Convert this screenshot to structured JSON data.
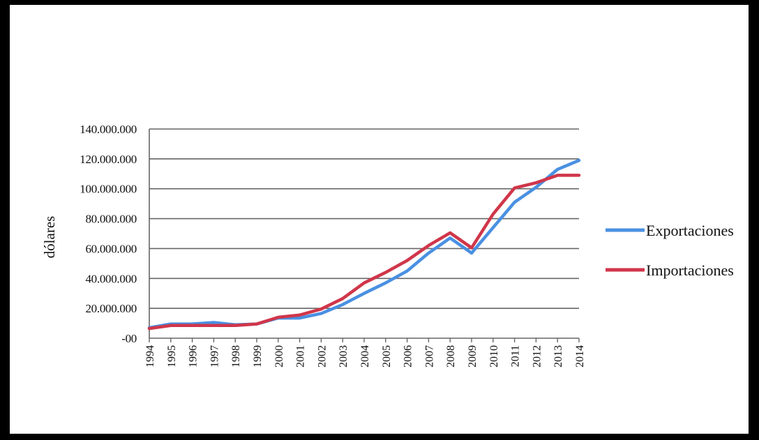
{
  "colors": {
    "exports": "#4a90e2",
    "imports": "#d0364a",
    "grid": "#666666",
    "frame": "#000000"
  },
  "chart_data": {
    "type": "line",
    "title": "",
    "xlabel": "",
    "ylabel": "dólares",
    "ylim": [
      0,
      140000000
    ],
    "ytick_values": [
      0,
      20000000,
      40000000,
      60000000,
      80000000,
      100000000,
      120000000,
      140000000
    ],
    "ytick_labels": [
      "-00",
      "20.000.000",
      "40.000.000",
      "60.000.000",
      "80.000.000",
      "100.000.000",
      "120.000.000",
      "140.000.000"
    ],
    "categories": [
      "1994",
      "1995",
      "1996",
      "1997",
      "1998",
      "1999",
      "2000",
      "2001",
      "2002",
      "2003",
      "2004",
      "2005",
      "2006",
      "2007",
      "2008",
      "2009",
      "2010",
      "2011",
      "2012",
      "2013",
      "2014"
    ],
    "grid": true,
    "legend_position": "right",
    "series": [
      {
        "name": "Exportaciones",
        "color": "#4a90e2",
        "values": [
          7000000,
          9500000,
          9500000,
          10500000,
          9000000,
          9500000,
          13500000,
          13500000,
          16500000,
          22500000,
          30000000,
          37000000,
          45000000,
          57000000,
          67000000,
          57000000,
          74000000,
          91000000,
          101000000,
          113000000,
          119000000
        ]
      },
      {
        "name": "Importaciones",
        "color": "#d0364a",
        "values": [
          6500000,
          8500000,
          8500000,
          8500000,
          8500000,
          9500000,
          14000000,
          15500000,
          19500000,
          26500000,
          37000000,
          44000000,
          52000000,
          62000000,
          70500000,
          60500000,
          83000000,
          100500000,
          104000000,
          109000000,
          109000000
        ]
      }
    ]
  }
}
